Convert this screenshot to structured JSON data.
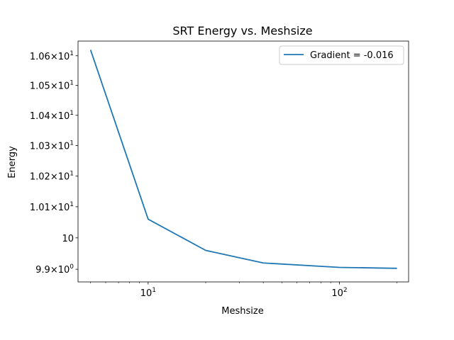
{
  "chart_data": {
    "type": "line",
    "title": "SRT Energy vs. Meshsize",
    "xlabel": "Meshsize",
    "ylabel": "Energy",
    "xscale": "log",
    "yscale": "log",
    "xlim": [
      4.3,
      230
    ],
    "ylim": [
      9.86,
      10.65
    ],
    "x_ticks": [
      {
        "value": 10,
        "base": "10",
        "exp": "1"
      },
      {
        "value": 100,
        "base": "10",
        "exp": "2"
      }
    ],
    "y_ticks": [
      {
        "value": 9.9,
        "mant": "9.9",
        "base": "10",
        "exp": "0"
      },
      {
        "value": 10.0,
        "plain": "10"
      },
      {
        "value": 10.1,
        "mant": "1.01",
        "base": "10",
        "exp": "1"
      },
      {
        "value": 10.2,
        "mant": "1.02",
        "base": "10",
        "exp": "1"
      },
      {
        "value": 10.3,
        "mant": "1.03",
        "base": "10",
        "exp": "1"
      },
      {
        "value": 10.4,
        "mant": "1.04",
        "base": "10",
        "exp": "1"
      },
      {
        "value": 10.5,
        "mant": "1.05",
        "base": "10",
        "exp": "1"
      },
      {
        "value": 10.6,
        "mant": "1.06",
        "base": "10",
        "exp": "1"
      }
    ],
    "series": [
      {
        "name": "Gradient = -0.016",
        "color": "#1f77b4",
        "x": [
          5,
          10,
          20,
          40,
          100,
          200
        ],
        "y": [
          10.62,
          10.06,
          9.96,
          9.92,
          9.906,
          9.903
        ]
      }
    ],
    "legend_position": "top-right"
  }
}
